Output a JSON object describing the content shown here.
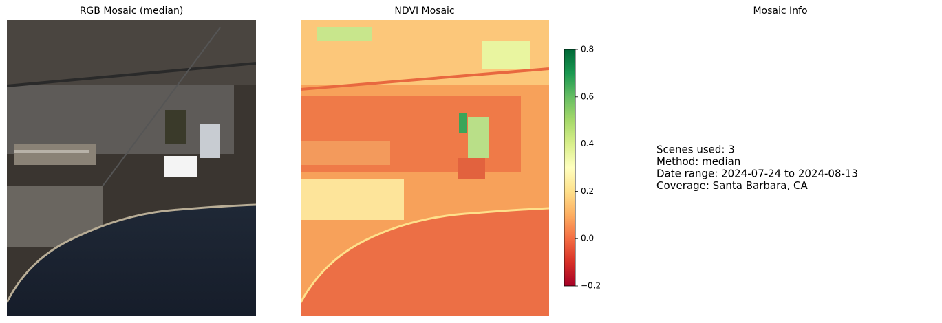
{
  "chart_data": [
    {
      "type": "image",
      "title": "RGB Mosaic (median)"
    },
    {
      "type": "image",
      "title": "NDVI Mosaic",
      "colorbar": {
        "cmap": "RdYlGn",
        "lim": [
          -0.2,
          0.8
        ],
        "ticks": [
          {
            "value": -0.2,
            "label": "−0.2"
          },
          {
            "value": 0,
            "label": "0.0"
          },
          0.2,
          0.4,
          0.6,
          0.8
        ]
      }
    },
    {
      "type": "text",
      "title": "Mosaic Info",
      "lines": [
        "Scenes used: 3",
        "Method: median",
        "Date range: 2024-07-24 to 2024-08-13",
        "Coverage: Santa Barbara, CA"
      ]
    }
  ]
}
